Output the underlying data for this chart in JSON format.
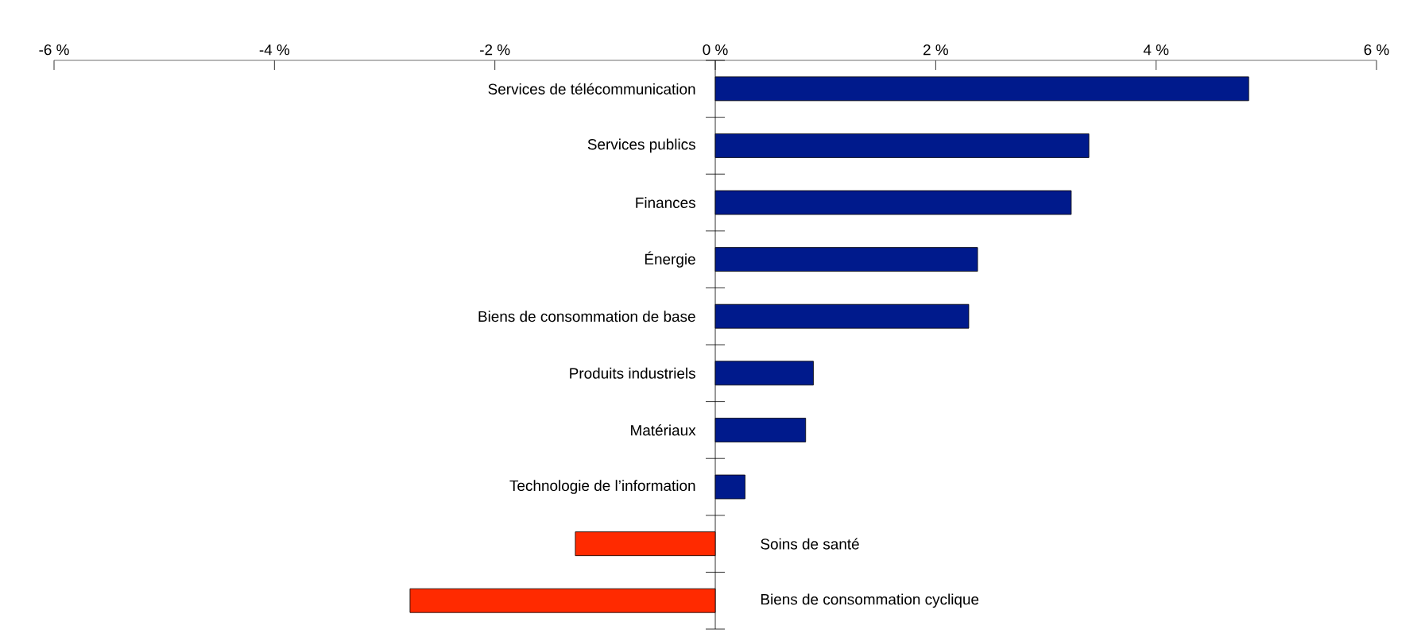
{
  "chart_data": {
    "type": "bar",
    "orientation": "horizontal",
    "categories": [
      "Services de télécommunication",
      "Services publics",
      "Finances",
      "Énergie",
      "Biens de consommation de base",
      "Produits industriels",
      "Matériaux",
      "Technologie de l’information",
      "Soins de santé",
      "Biens de consommation cyclique"
    ],
    "values": [
      4.84,
      3.39,
      3.23,
      2.38,
      2.3,
      0.89,
      0.82,
      0.27,
      -1.27,
      -2.77
    ],
    "colors": [
      "#001a8c",
      "#001a8c",
      "#001a8c",
      "#001a8c",
      "#001a8c",
      "#001a8c",
      "#001a8c",
      "#001a8c",
      "#ff2a00",
      "#ff2a00"
    ],
    "xlim": [
      -6,
      6
    ],
    "xticks": [
      {
        "value": -6,
        "label": "-6 %"
      },
      {
        "value": -4,
        "label": "-4 %"
      },
      {
        "value": -2,
        "label": "-2 %"
      },
      {
        "value": 0,
        "label": "0 %"
      },
      {
        "value": 2,
        "label": "2 %"
      },
      {
        "value": 4,
        "label": "4 %"
      },
      {
        "value": 6,
        "label": "6 %"
      }
    ],
    "grid": false
  }
}
